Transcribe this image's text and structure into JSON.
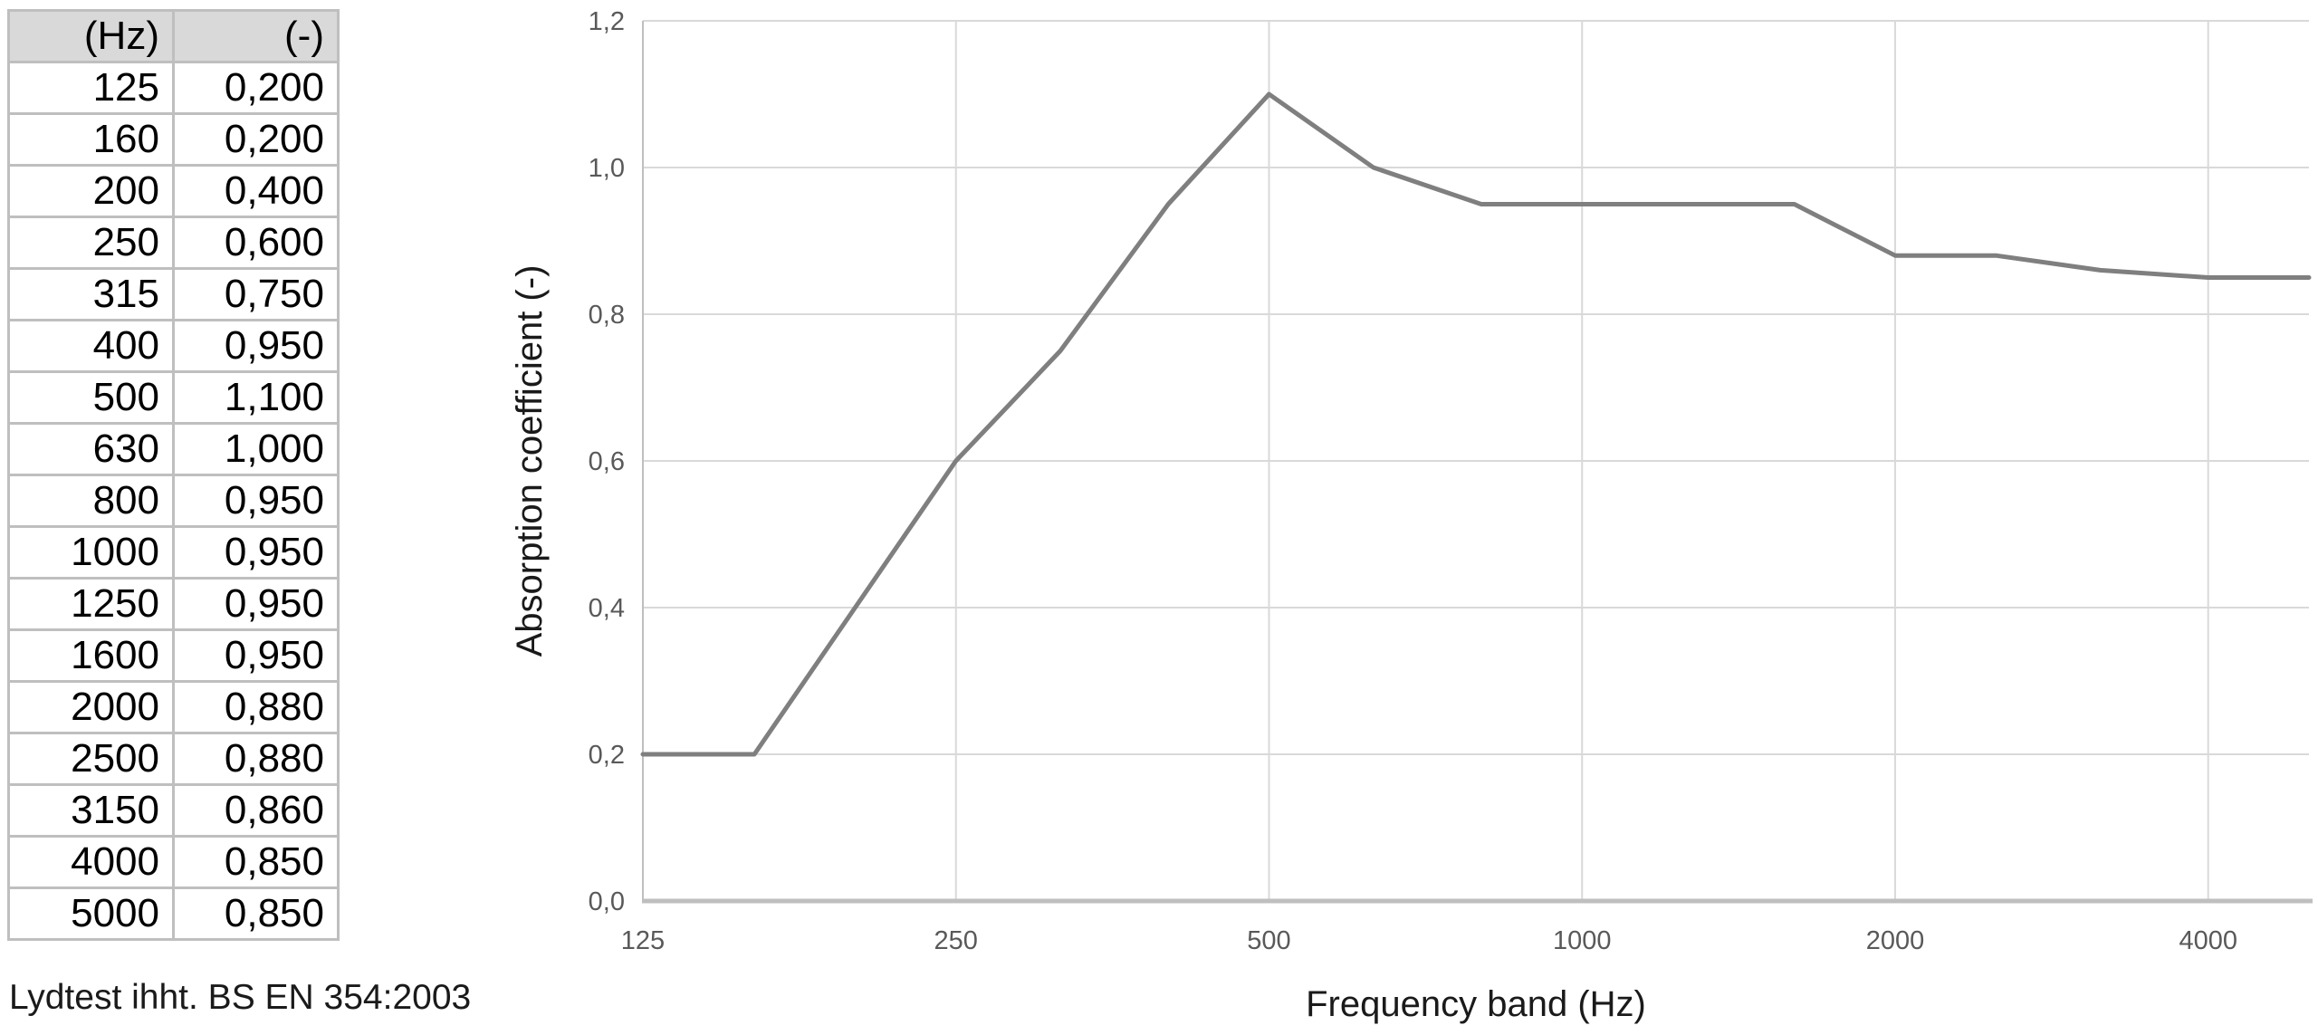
{
  "table": {
    "headers": [
      "(Hz)",
      "(-)"
    ],
    "rows": [
      [
        "125",
        "0,200"
      ],
      [
        "160",
        "0,200"
      ],
      [
        "200",
        "0,400"
      ],
      [
        "250",
        "0,600"
      ],
      [
        "315",
        "0,750"
      ],
      [
        "400",
        "0,950"
      ],
      [
        "500",
        "1,100"
      ],
      [
        "630",
        "1,000"
      ],
      [
        "800",
        "0,950"
      ],
      [
        "1000",
        "0,950"
      ],
      [
        "1250",
        "0,950"
      ],
      [
        "1600",
        "0,950"
      ],
      [
        "2000",
        "0,880"
      ],
      [
        "2500",
        "0,880"
      ],
      [
        "3150",
        "0,860"
      ],
      [
        "4000",
        "0,850"
      ],
      [
        "5000",
        "0,850"
      ]
    ]
  },
  "caption": "Lydtest ihht. BS EN 354:2003",
  "chart_data": {
    "type": "line",
    "x": [
      125,
      160,
      200,
      250,
      315,
      400,
      500,
      630,
      800,
      1000,
      1250,
      1600,
      2000,
      2500,
      3150,
      4000,
      5000
    ],
    "values": [
      0.2,
      0.2,
      0.4,
      0.6,
      0.75,
      0.95,
      1.1,
      1.0,
      0.95,
      0.95,
      0.95,
      0.95,
      0.88,
      0.88,
      0.86,
      0.85,
      0.85
    ],
    "title": "",
    "xlabel": "Frequency band (Hz)",
    "ylabel": "Absorption coefficient (-)",
    "x_scale": "log2",
    "xlim": [
      125,
      5000
    ],
    "ylim": [
      0,
      1.2
    ],
    "x_ticks": [
      125,
      250,
      500,
      1000,
      2000,
      4000
    ],
    "x_tick_labels": [
      "125",
      "250",
      "500",
      "1000",
      "2000",
      "4000"
    ],
    "y_ticks": [
      0,
      0.2,
      0.4,
      0.6,
      0.8,
      1.0,
      1.2
    ],
    "y_tick_labels": [
      "0,0",
      "0,2",
      "0,4",
      "0,6",
      "0,8",
      "1,0",
      "1,2"
    ],
    "grid": true,
    "legend": "none",
    "line_color": "#7f7f7f",
    "gridline_color": "#d9d9d9",
    "axis_line_color": "#bfbfbf",
    "tick_label_color": "#595959"
  }
}
